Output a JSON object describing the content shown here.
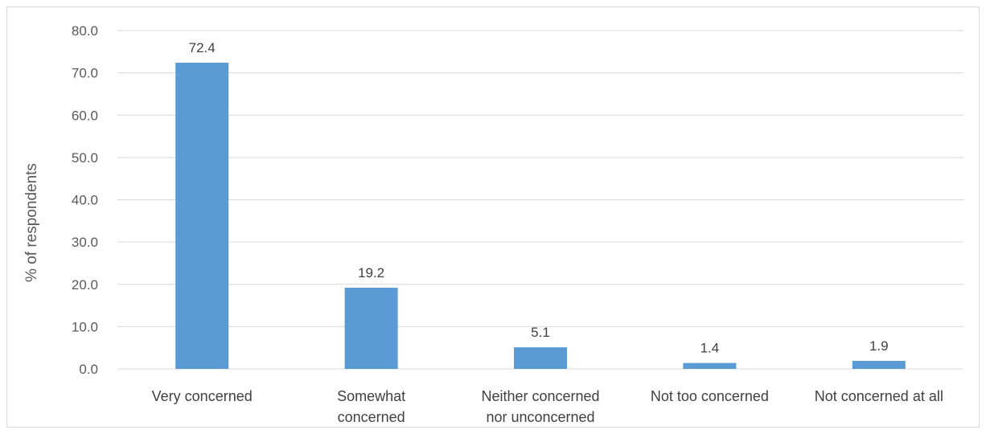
{
  "chart_data": {
    "type": "bar",
    "title": "",
    "xlabel": "",
    "ylabel": "% of respondents",
    "ylim": [
      0,
      80
    ],
    "ytick_step": 10,
    "ytick_decimals": 1,
    "grid": true,
    "legend": "none",
    "categories": [
      [
        "Very concerned"
      ],
      [
        "Somewhat",
        "concerned"
      ],
      [
        "Neither concerned",
        "nor unconcerned"
      ],
      [
        "Not too concerned"
      ],
      [
        "Not concerned at all"
      ]
    ],
    "values": [
      72.4,
      19.2,
      5.1,
      1.4,
      1.9
    ],
    "colors": {
      "bar": "#5b9bd5",
      "grid": "#d9d9d9"
    }
  }
}
